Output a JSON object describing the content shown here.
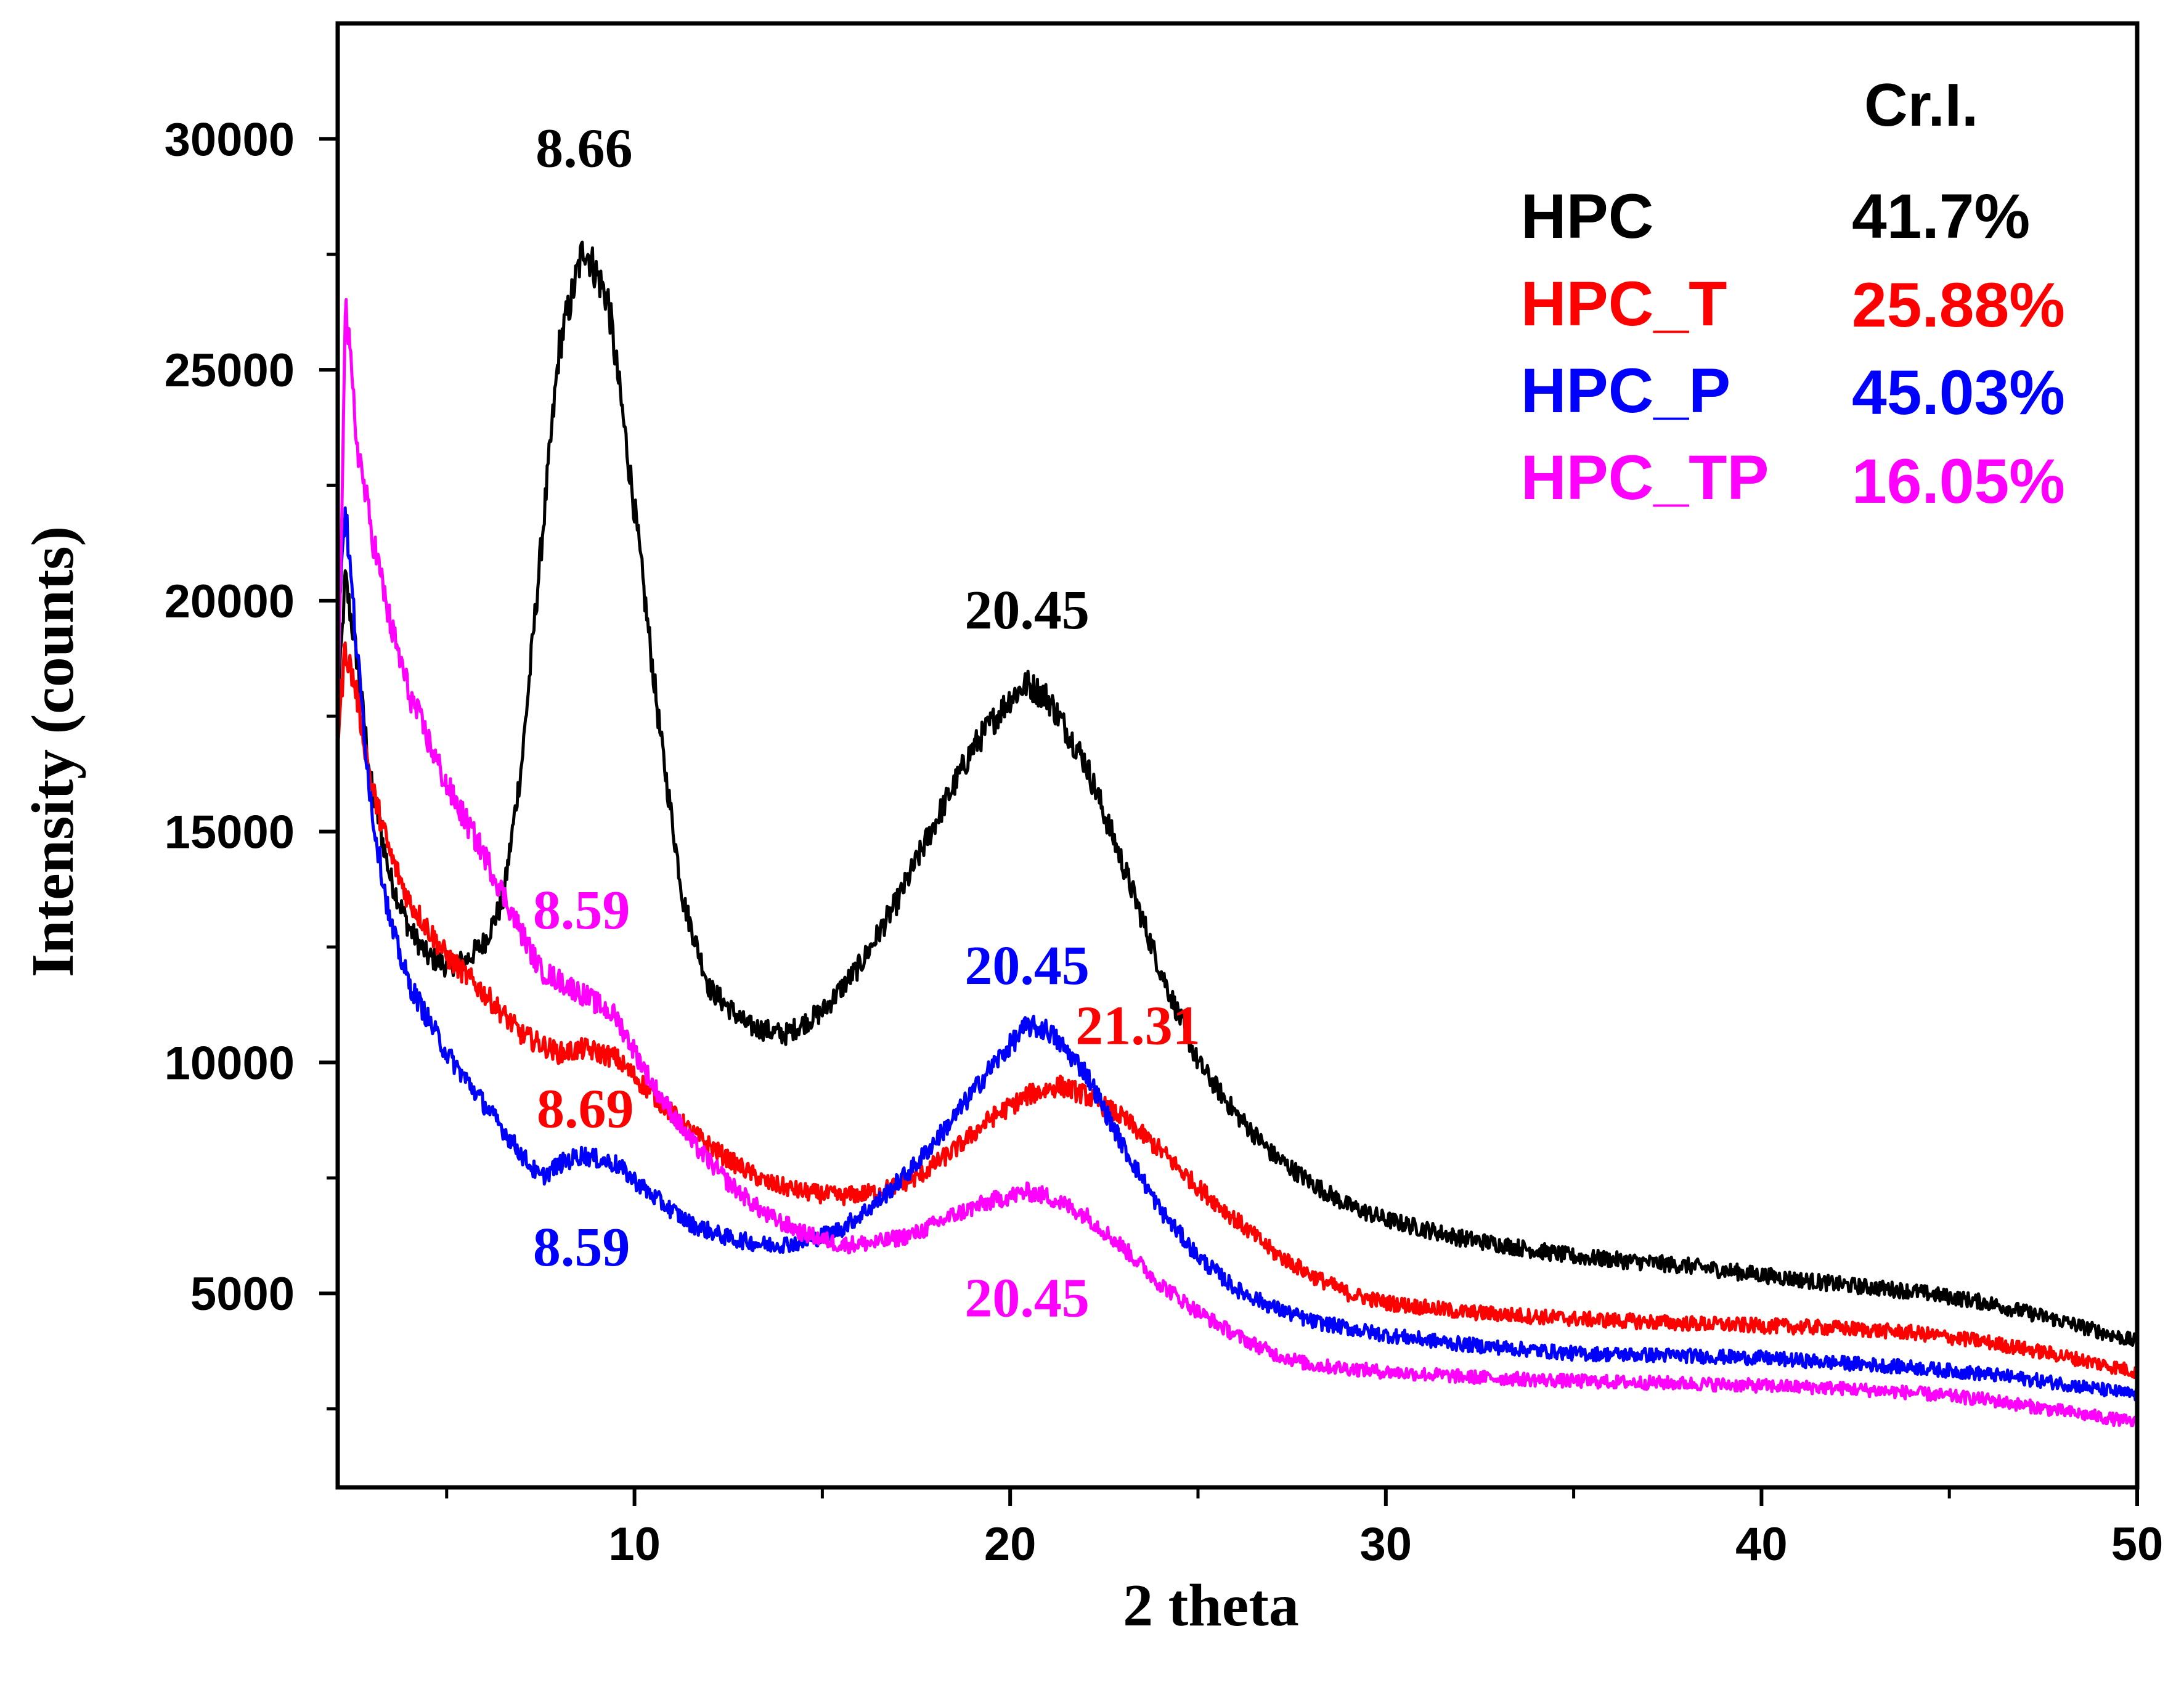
{
  "chart_data": {
    "type": "line",
    "xlabel": "2 theta",
    "ylabel": "Intensity (counts)",
    "xlim": [
      2.1,
      50
    ],
    "ylim": [
      800,
      32500
    ],
    "x_ticks": [
      10,
      20,
      30,
      40,
      50
    ],
    "x_minor_ticks": [
      5,
      15,
      25,
      35,
      45
    ],
    "y_ticks": [
      5000,
      10000,
      15000,
      20000,
      25000,
      30000
    ],
    "y_minor_ticks": [
      2500,
      7500,
      12500,
      17500,
      22500,
      27500
    ],
    "legend_header": "Cr.I.",
    "series": [
      {
        "name": "HPC",
        "cri": "41.7%",
        "color": "#000000",
        "points": [
          [
            2.1,
            17500
          ],
          [
            2.3,
            20500
          ],
          [
            2.6,
            18800
          ],
          [
            3.0,
            16000
          ],
          [
            3.5,
            14000
          ],
          [
            4.0,
            12900
          ],
          [
            4.5,
            12300
          ],
          [
            5.0,
            12100
          ],
          [
            5.5,
            12200
          ],
          [
            6.0,
            12600
          ],
          [
            6.5,
            13500
          ],
          [
            7.0,
            16500
          ],
          [
            7.5,
            21000
          ],
          [
            8.0,
            25500
          ],
          [
            8.66,
            27700
          ],
          [
            9.3,
            26500
          ],
          [
            10.0,
            22000
          ],
          [
            10.7,
            17000
          ],
          [
            11.3,
            13500
          ],
          [
            12.0,
            11600
          ],
          [
            13.0,
            10800
          ],
          [
            14.0,
            10600
          ],
          [
            15.0,
            11100
          ],
          [
            16.0,
            12100
          ],
          [
            17.0,
            13500
          ],
          [
            18.0,
            15200
          ],
          [
            19.0,
            16800
          ],
          [
            20.0,
            17900
          ],
          [
            20.45,
            18200
          ],
          [
            21.0,
            17900
          ],
          [
            22.0,
            16500
          ],
          [
            23.0,
            14300
          ],
          [
            24.0,
            12000
          ],
          [
            25.0,
            10000
          ],
          [
            26.0,
            8900
          ],
          [
            27.0,
            8000
          ],
          [
            28.0,
            7400
          ],
          [
            29.0,
            6900
          ],
          [
            30.0,
            6600
          ],
          [
            32.0,
            6200
          ],
          [
            35.0,
            5800
          ],
          [
            38.0,
            5600
          ],
          [
            40.0,
            5400
          ],
          [
            42.0,
            5200
          ],
          [
            44.0,
            5050
          ],
          [
            46.0,
            4800
          ],
          [
            48.0,
            4400
          ],
          [
            50.0,
            3950
          ]
        ]
      },
      {
        "name": "HPC_T",
        "cri": "25.88%",
        "color": "#ff0000",
        "points": [
          [
            2.1,
            17000
          ],
          [
            2.3,
            19000
          ],
          [
            2.6,
            18000
          ],
          [
            3.0,
            16000
          ],
          [
            3.5,
            14500
          ],
          [
            4.0,
            13500
          ],
          [
            5.0,
            12300
          ],
          [
            6.0,
            11500
          ],
          [
            7.0,
            10600
          ],
          [
            8.0,
            10200
          ],
          [
            8.69,
            10300
          ],
          [
            9.5,
            10100
          ],
          [
            10.5,
            9300
          ],
          [
            11.5,
            8500
          ],
          [
            12.5,
            7900
          ],
          [
            13.5,
            7400
          ],
          [
            14.5,
            7200
          ],
          [
            15.5,
            7100
          ],
          [
            16.5,
            7200
          ],
          [
            17.5,
            7500
          ],
          [
            18.5,
            8100
          ],
          [
            19.5,
            8800
          ],
          [
            20.5,
            9300
          ],
          [
            21.31,
            9500
          ],
          [
            22.0,
            9300
          ],
          [
            23.0,
            8800
          ],
          [
            24.0,
            8100
          ],
          [
            25.0,
            7300
          ],
          [
            26.0,
            6600
          ],
          [
            27.0,
            5900
          ],
          [
            28.0,
            5400
          ],
          [
            29.0,
            5000
          ],
          [
            30.0,
            4800
          ],
          [
            32.0,
            4600
          ],
          [
            35.0,
            4450
          ],
          [
            38.0,
            4350
          ],
          [
            40.0,
            4300
          ],
          [
            42.0,
            4250
          ],
          [
            44.0,
            4150
          ],
          [
            46.0,
            3950
          ],
          [
            48.0,
            3650
          ],
          [
            50.0,
            3300
          ]
        ]
      },
      {
        "name": "HPC_P",
        "cri": "45.03%",
        "color": "#0000ff",
        "points": [
          [
            2.1,
            19500
          ],
          [
            2.3,
            22000
          ],
          [
            2.6,
            19000
          ],
          [
            3.0,
            15500
          ],
          [
            3.5,
            13000
          ],
          [
            4.0,
            11700
          ],
          [
            5.0,
            10200
          ],
          [
            6.0,
            9100
          ],
          [
            7.0,
            8000
          ],
          [
            7.5,
            7500
          ],
          [
            8.0,
            7800
          ],
          [
            8.59,
            8000
          ],
          [
            9.5,
            7800
          ],
          [
            10.5,
            7100
          ],
          [
            11.5,
            6500
          ],
          [
            12.5,
            6200
          ],
          [
            13.5,
            6050
          ],
          [
            14.5,
            6100
          ],
          [
            15.5,
            6400
          ],
          [
            16.5,
            7000
          ],
          [
            17.5,
            7800
          ],
          [
            18.5,
            8800
          ],
          [
            19.5,
            9900
          ],
          [
            20.45,
            10800
          ],
          [
            21.0,
            10700
          ],
          [
            22.0,
            9800
          ],
          [
            23.0,
            8200
          ],
          [
            24.0,
            6800
          ],
          [
            25.0,
            5800
          ],
          [
            26.0,
            5100
          ],
          [
            27.0,
            4700
          ],
          [
            28.0,
            4400
          ],
          [
            30.0,
            4100
          ],
          [
            32.0,
            3900
          ],
          [
            35.0,
            3700
          ],
          [
            38.0,
            3650
          ],
          [
            40.0,
            3600
          ],
          [
            42.0,
            3500
          ],
          [
            44.0,
            3400
          ],
          [
            46.0,
            3250
          ],
          [
            48.0,
            3050
          ],
          [
            50.0,
            2800
          ]
        ]
      },
      {
        "name": "HPC_TP",
        "cri": "16.05%",
        "color": "#ff00ff",
        "points": [
          [
            2.1,
            16800
          ],
          [
            2.3,
            26500
          ],
          [
            2.6,
            23500
          ],
          [
            3.0,
            21500
          ],
          [
            3.5,
            19500
          ],
          [
            4.0,
            18000
          ],
          [
            5.0,
            16000
          ],
          [
            6.0,
            14500
          ],
          [
            7.0,
            12800
          ],
          [
            7.5,
            12000
          ],
          [
            8.59,
            11500
          ],
          [
            9.5,
            11000
          ],
          [
            10.5,
            9500
          ],
          [
            11.5,
            8300
          ],
          [
            12.5,
            7400
          ],
          [
            13.5,
            6700
          ],
          [
            14.5,
            6300
          ],
          [
            15.5,
            6050
          ],
          [
            16.5,
            6100
          ],
          [
            17.5,
            6300
          ],
          [
            18.5,
            6700
          ],
          [
            19.5,
            7000
          ],
          [
            20.45,
            7200
          ],
          [
            21.0,
            7100
          ],
          [
            22.0,
            6700
          ],
          [
            23.0,
            6000
          ],
          [
            24.0,
            5200
          ],
          [
            25.0,
            4600
          ],
          [
            26.0,
            4100
          ],
          [
            27.0,
            3700
          ],
          [
            28.0,
            3450
          ],
          [
            30.0,
            3300
          ],
          [
            32.0,
            3200
          ],
          [
            35.0,
            3100
          ],
          [
            38.0,
            3050
          ],
          [
            40.0,
            3000
          ],
          [
            42.0,
            2950
          ],
          [
            44.0,
            2850
          ],
          [
            46.0,
            2700
          ],
          [
            48.0,
            2450
          ],
          [
            50.0,
            2200
          ]
        ]
      }
    ],
    "annotations": [
      {
        "text": "8.66",
        "series": "HPC",
        "x": 8.66,
        "y": 29400
      },
      {
        "text": "20.45",
        "series": "HPC",
        "x": 20.45,
        "y": 19400
      },
      {
        "text": "8.59",
        "series": "HPC_TP",
        "x": 8.59,
        "y": 12900
      },
      {
        "text": "20.45",
        "series": "HPC_P",
        "x": 20.45,
        "y": 11700
      },
      {
        "text": "21.31",
        "series": "HPC_T",
        "x": 23.4,
        "y": 10400
      },
      {
        "text": "8.69",
        "series": "HPC_T",
        "x": 8.69,
        "y": 8600
      },
      {
        "text": "8.59",
        "series": "HPC_P",
        "x": 8.59,
        "y": 5600
      },
      {
        "text": "20.45",
        "series": "HPC_TP",
        "x": 20.45,
        "y": 4500
      }
    ]
  }
}
